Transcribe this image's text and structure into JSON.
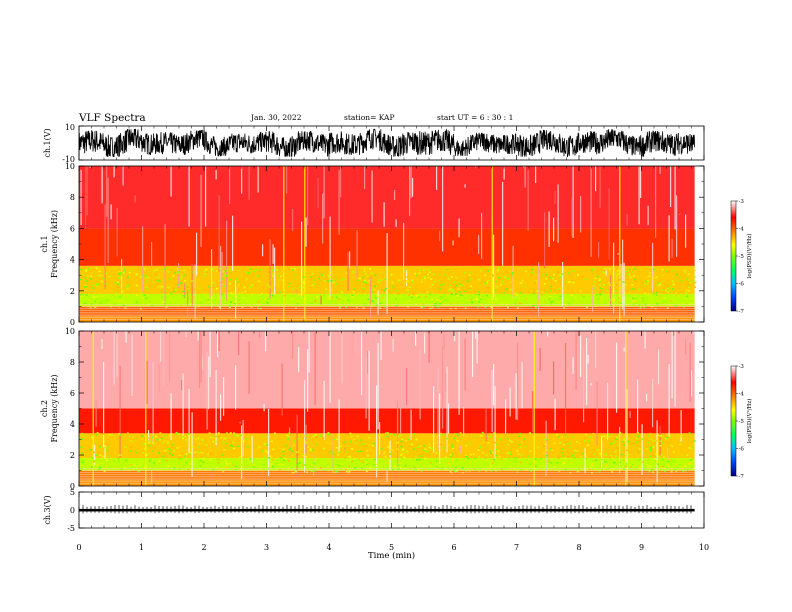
{
  "header": {
    "title": "VLF Spectra",
    "date": "Jan. 30, 2022",
    "station": "station= KAP",
    "start_ut": "start  UT =   6 : 30 : 1"
  },
  "colors": {
    "background": "#ffffff",
    "axis": "#000000",
    "colormap": [
      "#000080",
      "#0040ff",
      "#00c0ff",
      "#00ff60",
      "#80ff00",
      "#ffff00",
      "#ff8000",
      "#ff0000",
      "#ffffff"
    ]
  },
  "chart_data": [
    {
      "type": "line",
      "id": "ch1-waveform",
      "ylabel": "ch.1(V)",
      "ylim": [
        -10,
        10
      ],
      "ytick_labels": [
        "10",
        "-10"
      ],
      "x_range": [
        0,
        9.85
      ],
      "color": "#000000",
      "description_of_signal": "dense noisy waveform, mostly between -8 and +8 V",
      "envelope_upper": [
        8.0,
        7.5,
        6.5,
        7.0,
        8.0,
        7.8,
        6.0,
        7.5,
        8.0,
        7.0
      ],
      "envelope_lower": [
        -8.0,
        -7.0,
        -7.5,
        -8.0,
        -7.0,
        -8.0,
        -7.5,
        -8.0,
        -7.0,
        -8.0
      ]
    },
    {
      "type": "heatmap",
      "id": "ch1-spectrogram",
      "ylabel": "ch.1\nFrequency (kHz)",
      "ylabel_line1": "ch.1",
      "ylabel_line2": "Frequency (kHz)",
      "xlim": [
        0,
        10
      ],
      "ylim": [
        0,
        10
      ],
      "ytick_labels": [
        "0",
        "2",
        "4",
        "6",
        "8",
        "10"
      ],
      "data_x_end": 9.85,
      "colorbar": {
        "label": "log(PSD)(V²/Hz)",
        "range": [
          -7,
          -3
        ],
        "tick_labels": [
          "-3",
          "-4",
          "-5",
          "-6",
          "-7"
        ]
      },
      "band_levels_log_psd": [
        {
          "f_range": [
            0,
            0.4
          ],
          "level": -4.2
        },
        {
          "f_range": [
            0.4,
            1.0
          ],
          "level": -4.0
        },
        {
          "f_range": [
            1.0,
            1.8
          ],
          "level": -4.8
        },
        {
          "f_range": [
            1.8,
            3.6
          ],
          "level": -4.4
        },
        {
          "f_range": [
            3.6,
            6.0
          ],
          "level": -3.8
        },
        {
          "f_range": [
            6.0,
            10.0
          ],
          "level": -3.5
        }
      ]
    },
    {
      "type": "heatmap",
      "id": "ch2-spectrogram",
      "ylabel": "ch.2\nFrequency (kHz)",
      "ylabel_line1": "ch.2",
      "ylabel_line2": "Frequency (kHz)",
      "xlim": [
        0,
        10
      ],
      "ylim": [
        0,
        10
      ],
      "ytick_labels": [
        "0",
        "2",
        "4",
        "6",
        "8",
        "10"
      ],
      "data_x_end": 9.85,
      "colorbar": {
        "label": "log(PSD)(V²/Hz)",
        "range": [
          -7,
          -3
        ],
        "tick_labels": [
          "-3",
          "-4",
          "-5",
          "-6",
          "-7"
        ]
      },
      "band_levels_log_psd": [
        {
          "f_range": [
            0,
            0.4
          ],
          "level": -4.2
        },
        {
          "f_range": [
            0.4,
            1.0
          ],
          "level": -4.1
        },
        {
          "f_range": [
            1.0,
            1.8
          ],
          "level": -4.8
        },
        {
          "f_range": [
            1.8,
            3.4
          ],
          "level": -4.4
        },
        {
          "f_range": [
            3.4,
            5.0
          ],
          "level": -3.7
        },
        {
          "f_range": [
            5.0,
            10.0
          ],
          "level": -3.2
        }
      ]
    },
    {
      "type": "line",
      "id": "ch3-waveform",
      "ylabel": "ch.3(V)",
      "ylim": [
        -5,
        5
      ],
      "ytick_labels": [
        "5",
        "0",
        "-5"
      ],
      "x_range": [
        0,
        9.85
      ],
      "color": "#000000",
      "band_upper": 0.3,
      "band_lower": -0.4
    }
  ],
  "x_axis": {
    "label": "Time (min)",
    "range": [
      0,
      10
    ],
    "tick_labels": [
      "0",
      "1",
      "2",
      "3",
      "4",
      "5",
      "6",
      "7",
      "8",
      "9",
      "10"
    ]
  }
}
